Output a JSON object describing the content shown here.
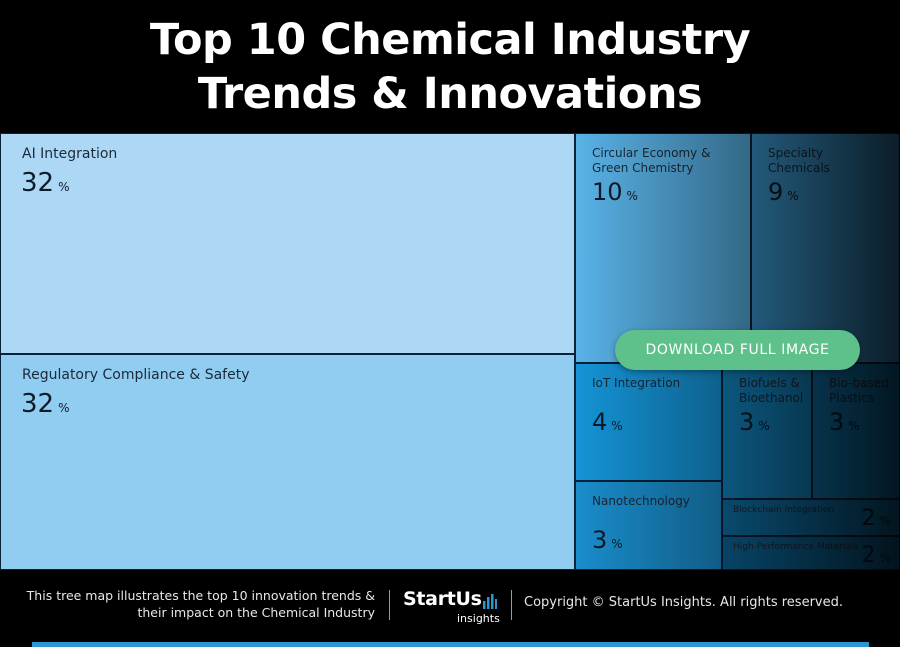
{
  "header": {
    "title_line1": "Top 10 Chemical Industry",
    "title_line2": "Trends & Innovations"
  },
  "chart_data": {
    "type": "treemap",
    "unit": "%",
    "items": [
      {
        "name": "AI Integration",
        "value": 32,
        "color": "#acd8f6"
      },
      {
        "name": "Regulatory Compliance & Safety",
        "value": 32,
        "color": "#90cdf1"
      },
      {
        "name": "Circular Economy & Green Chemistry",
        "value": 10,
        "color": "#5ab5ea"
      },
      {
        "name": "Specialty Chemicals",
        "value": 9,
        "color": "#3e9fda"
      },
      {
        "name": "IoT Integration",
        "value": 4,
        "color": "#1596da"
      },
      {
        "name": "Biofuels & Bioethanol",
        "value": 3,
        "color": "#1288c5"
      },
      {
        "name": "Bio-based Plastics",
        "value": 3,
        "color": "#0f7cb7"
      },
      {
        "name": "Nanotechnology",
        "value": 3,
        "color": "#1a8fcf"
      },
      {
        "name": "Blockchain Integration",
        "value": 2,
        "color": "#0e73ab"
      },
      {
        "name": "High-Performance Materials",
        "value": 2,
        "color": "#0c6aa0"
      }
    ]
  },
  "overlay": {
    "download_label": "DOWNLOAD FULL IMAGE",
    "button_color": "#5ec08a"
  },
  "footer": {
    "caption": "This tree map illustrates the top 10 innovation trends & their impact on the Chemical Industry",
    "logo_brand": "StartUs",
    "logo_sub": "insights",
    "copyright": "Copyright © StartUs Insights. All rights reserved."
  }
}
